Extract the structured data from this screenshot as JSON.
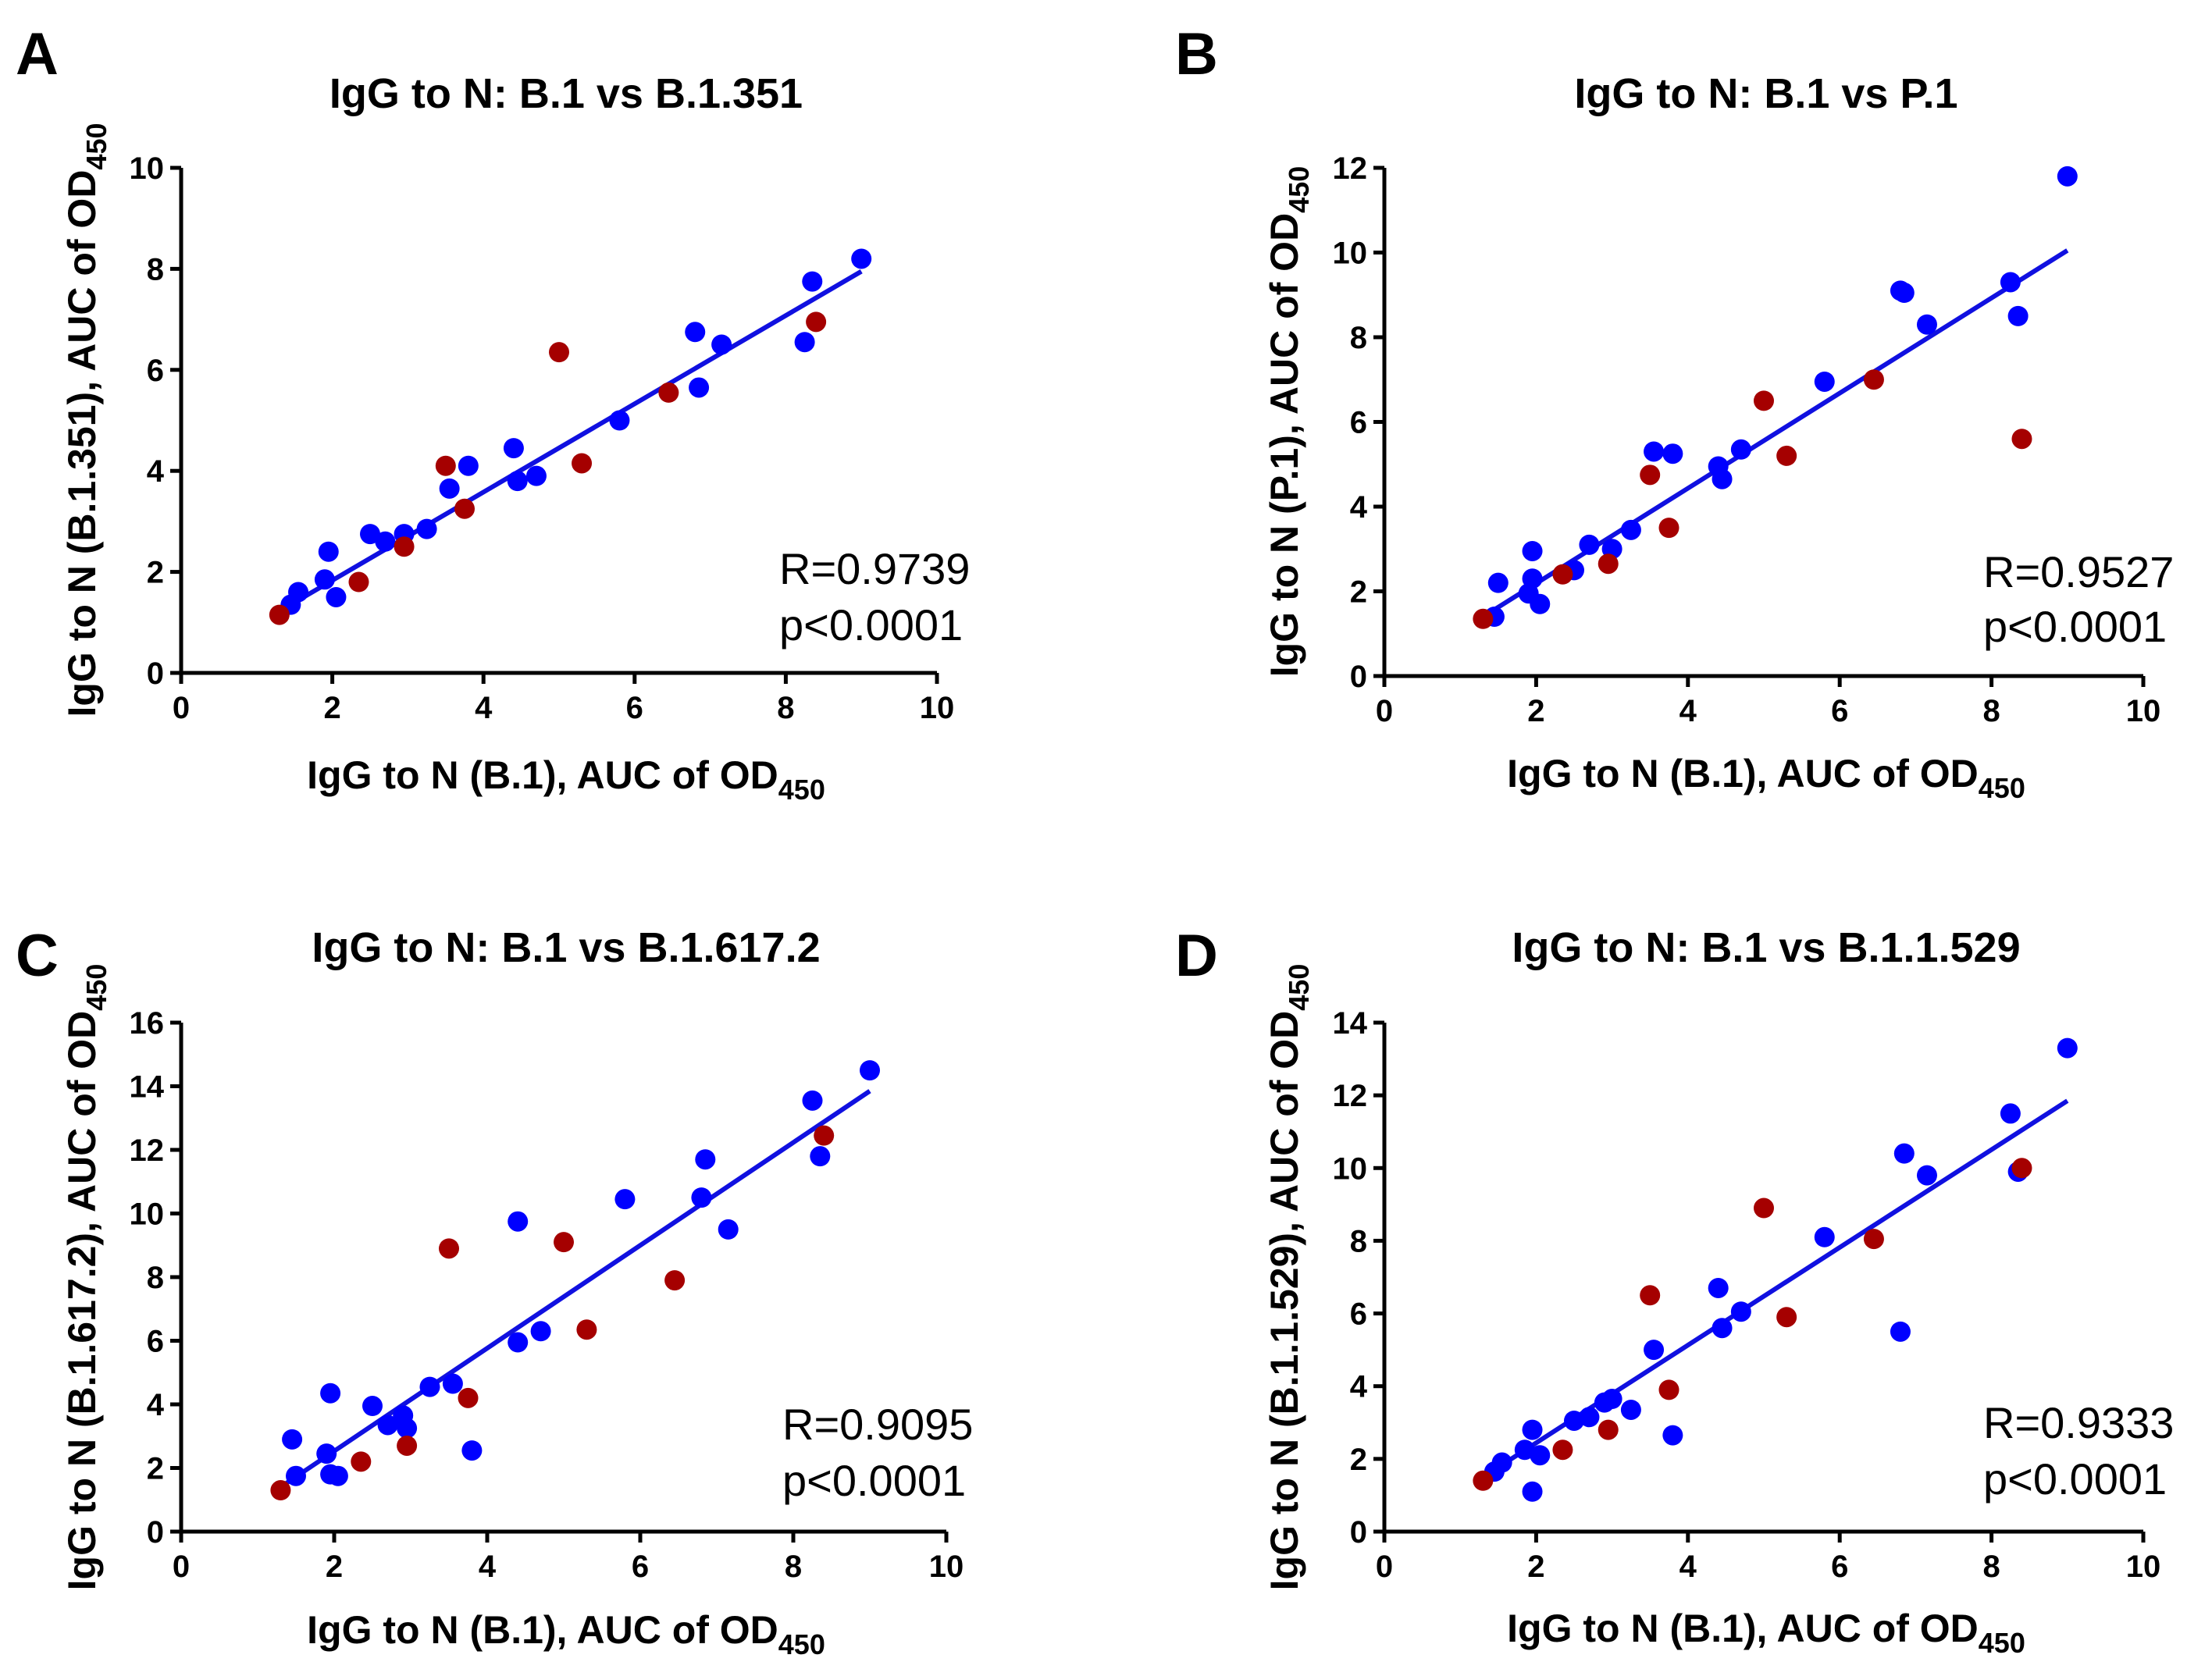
{
  "colors": {
    "dot_blue": "#0000FF",
    "dot_red": "#A50000",
    "fit_line": "#1010E0"
  },
  "chart_data": [
    {
      "panel": "A",
      "type": "scatter",
      "title": "IgG to N: B.1 vs B.1.351",
      "xlabel_main": "IgG to N (B.1), AUC of OD",
      "xlabel_sub": "450",
      "ylabel_main": "IgG to N (B.1.351), AUC of OD",
      "ylabel_sub": "450",
      "xlim": [
        0,
        10
      ],
      "ylim": [
        0,
        10
      ],
      "xticks": [
        0,
        2,
        4,
        6,
        8,
        10
      ],
      "yticks": [
        0,
        2,
        4,
        6,
        8,
        10
      ],
      "series": [
        {
          "name": "blue",
          "color": "#0000FF",
          "points": [
            [
              1.45,
              1.35
            ],
            [
              1.55,
              1.6
            ],
            [
              1.9,
              1.85
            ],
            [
              1.95,
              2.4
            ],
            [
              2.05,
              1.5
            ],
            [
              2.5,
              2.75
            ],
            [
              2.7,
              2.6
            ],
            [
              2.95,
              2.75
            ],
            [
              3.25,
              2.85
            ],
            [
              3.55,
              3.65
            ],
            [
              3.8,
              4.1
            ],
            [
              4.4,
              4.45
            ],
            [
              4.45,
              3.8
            ],
            [
              4.7,
              3.9
            ],
            [
              5.8,
              5.0
            ],
            [
              6.8,
              6.75
            ],
            [
              6.85,
              5.65
            ],
            [
              7.15,
              6.5
            ],
            [
              8.25,
              6.55
            ],
            [
              8.35,
              7.75
            ],
            [
              9.0,
              8.2
            ]
          ]
        },
        {
          "name": "red",
          "color": "#A50000",
          "points": [
            [
              1.3,
              1.15
            ],
            [
              2.35,
              1.8
            ],
            [
              2.95,
              2.5
            ],
            [
              3.5,
              4.1
            ],
            [
              3.75,
              3.25
            ],
            [
              5.0,
              6.35
            ],
            [
              5.3,
              4.15
            ],
            [
              6.45,
              5.55
            ],
            [
              8.4,
              6.95
            ]
          ]
        }
      ],
      "fit": {
        "x": [
          1.3,
          9.0
        ],
        "y": [
          1.22,
          7.95
        ]
      },
      "stats": {
        "r": "R=0.9739",
        "p": "p<0.0001"
      }
    },
    {
      "panel": "B",
      "type": "scatter",
      "title": "IgG to N: B.1 vs P.1",
      "xlabel_main": "IgG to N (B.1), AUC of OD",
      "xlabel_sub": "450",
      "ylabel_main": "IgG to N (P.1), AUC of OD",
      "ylabel_sub": "450",
      "xlim": [
        0,
        10
      ],
      "ylim": [
        0,
        12
      ],
      "xticks": [
        0,
        2,
        4,
        6,
        8,
        10
      ],
      "yticks": [
        0,
        2,
        4,
        6,
        8,
        10,
        12
      ],
      "series": [
        {
          "name": "blue",
          "color": "#0000FF",
          "points": [
            [
              1.45,
              1.4
            ],
            [
              1.5,
              2.2
            ],
            [
              1.9,
              1.95
            ],
            [
              1.95,
              2.95
            ],
            [
              1.95,
              2.3
            ],
            [
              2.05,
              1.7
            ],
            [
              2.5,
              2.5
            ],
            [
              2.7,
              3.1
            ],
            [
              3.0,
              3.0
            ],
            [
              3.25,
              3.45
            ],
            [
              3.55,
              5.3
            ],
            [
              3.8,
              5.25
            ],
            [
              4.4,
              4.95
            ],
            [
              4.45,
              4.65
            ],
            [
              4.7,
              5.35
            ],
            [
              5.8,
              6.95
            ],
            [
              6.8,
              9.1
            ],
            [
              6.85,
              9.05
            ],
            [
              7.15,
              8.3
            ],
            [
              8.25,
              9.3
            ],
            [
              8.35,
              8.5
            ],
            [
              9.0,
              11.8
            ]
          ]
        },
        {
          "name": "red",
          "color": "#A50000",
          "points": [
            [
              1.3,
              1.35
            ],
            [
              2.35,
              2.4
            ],
            [
              2.95,
              2.65
            ],
            [
              3.5,
              4.75
            ],
            [
              3.75,
              3.5
            ],
            [
              5.0,
              6.5
            ],
            [
              5.3,
              5.2
            ],
            [
              6.45,
              7.0
            ],
            [
              8.4,
              5.6
            ]
          ]
        }
      ],
      "fit": {
        "x": [
          1.3,
          9.0
        ],
        "y": [
          1.4,
          10.05
        ]
      },
      "stats": {
        "r": "R=0.9527",
        "p": "p<0.0001"
      }
    },
    {
      "panel": "C",
      "type": "scatter",
      "title": "IgG to N: B.1 vs B.1.617.2",
      "xlabel_main": "IgG to N (B.1), AUC of OD",
      "xlabel_sub": "450",
      "ylabel_main": "IgG to N (B.1.617.2), AUC of OD",
      "ylabel_sub": "450",
      "xlim": [
        0,
        10
      ],
      "ylim": [
        0,
        16
      ],
      "xticks": [
        0,
        2,
        4,
        6,
        8,
        10
      ],
      "yticks": [
        0,
        2,
        4,
        6,
        8,
        10,
        12,
        14,
        16
      ],
      "series": [
        {
          "name": "blue",
          "color": "#0000FF",
          "points": [
            [
              1.45,
              2.9
            ],
            [
              1.5,
              1.75
            ],
            [
              1.9,
              2.45
            ],
            [
              1.95,
              1.8
            ],
            [
              1.95,
              4.35
            ],
            [
              2.05,
              1.75
            ],
            [
              2.5,
              3.95
            ],
            [
              2.7,
              3.35
            ],
            [
              2.9,
              3.65
            ],
            [
              2.95,
              3.25
            ],
            [
              3.25,
              4.55
            ],
            [
              3.55,
              4.65
            ],
            [
              3.8,
              2.55
            ],
            [
              4.4,
              9.75
            ],
            [
              4.4,
              5.95
            ],
            [
              4.7,
              6.3
            ],
            [
              5.8,
              10.45
            ],
            [
              6.8,
              10.5
            ],
            [
              6.85,
              11.7
            ],
            [
              7.15,
              9.5
            ],
            [
              8.25,
              13.55
            ],
            [
              8.35,
              11.8
            ],
            [
              9.0,
              14.5
            ]
          ]
        },
        {
          "name": "red",
          "color": "#A50000",
          "points": [
            [
              1.3,
              1.3
            ],
            [
              2.35,
              2.2
            ],
            [
              2.95,
              2.7
            ],
            [
              3.5,
              8.9
            ],
            [
              3.75,
              4.2
            ],
            [
              5.0,
              9.1
            ],
            [
              5.3,
              6.35
            ],
            [
              6.45,
              7.9
            ],
            [
              8.4,
              12.45
            ]
          ]
        }
      ],
      "fit": {
        "x": [
          1.3,
          9.0
        ],
        "y": [
          1.4,
          13.85
        ]
      },
      "stats": {
        "r": "R=0.9095",
        "p": "p<0.0001"
      }
    },
    {
      "panel": "D",
      "type": "scatter",
      "title": "IgG to N: B.1 vs B.1.1.529",
      "xlabel_main": "IgG to N (B.1), AUC of OD",
      "xlabel_sub": "450",
      "ylabel_main": "IgG to N (B.1.1.529), AUC of OD",
      "ylabel_sub": "450",
      "xlim": [
        0,
        10
      ],
      "ylim": [
        0,
        14
      ],
      "xticks": [
        0,
        2,
        4,
        6,
        8,
        10
      ],
      "yticks": [
        0,
        2,
        4,
        6,
        8,
        10,
        12,
        14
      ],
      "series": [
        {
          "name": "blue",
          "color": "#0000FF",
          "points": [
            [
              1.45,
              1.65
            ],
            [
              1.55,
              1.9
            ],
            [
              1.85,
              2.25
            ],
            [
              1.95,
              2.8
            ],
            [
              1.95,
              1.1
            ],
            [
              2.05,
              2.1
            ],
            [
              2.5,
              3.05
            ],
            [
              2.7,
              3.15
            ],
            [
              2.9,
              3.55
            ],
            [
              3.0,
              3.65
            ],
            [
              3.25,
              3.35
            ],
            [
              3.55,
              5.0
            ],
            [
              3.8,
              2.65
            ],
            [
              4.4,
              6.7
            ],
            [
              4.45,
              5.6
            ],
            [
              4.7,
              6.05
            ],
            [
              5.8,
              8.1
            ],
            [
              6.8,
              5.5
            ],
            [
              6.85,
              10.4
            ],
            [
              7.15,
              9.8
            ],
            [
              8.25,
              11.5
            ],
            [
              8.35,
              9.9
            ],
            [
              9.0,
              13.3
            ]
          ]
        },
        {
          "name": "red",
          "color": "#A50000",
          "points": [
            [
              1.3,
              1.4
            ],
            [
              2.35,
              2.25
            ],
            [
              2.95,
              2.8
            ],
            [
              3.5,
              6.5
            ],
            [
              3.75,
              3.9
            ],
            [
              5.0,
              8.9
            ],
            [
              5.3,
              5.9
            ],
            [
              6.45,
              8.05
            ],
            [
              8.4,
              10.0
            ]
          ]
        }
      ],
      "fit": {
        "x": [
          1.3,
          9.0
        ],
        "y": [
          1.5,
          11.85
        ]
      },
      "stats": {
        "r": "R=0.9333",
        "p": "p<0.0001"
      }
    }
  ]
}
